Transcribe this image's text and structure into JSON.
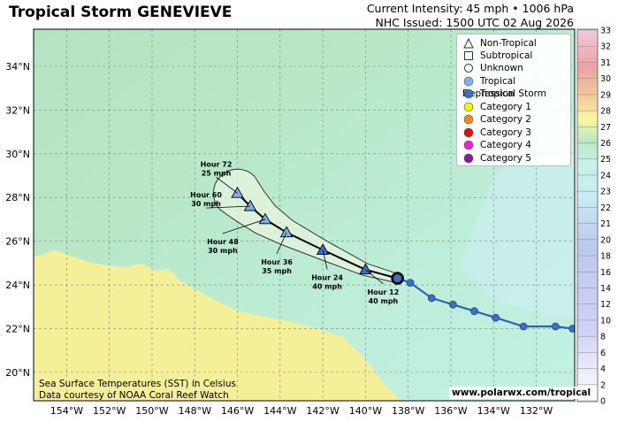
{
  "header": {
    "title": "Tropical Storm GENEVIEVE",
    "intensity": "Current Intensity: 45 mph • 1006 hPa",
    "issued": "NHC Issued: 1500 UTC 02 Aug 2026"
  },
  "axes": {
    "lat_labels": [
      "20°N",
      "22°N",
      "24°N",
      "26°N",
      "28°N",
      "30°N",
      "32°N",
      "34°N"
    ],
    "lon_labels": [
      "154°W",
      "152°W",
      "150°W",
      "148°W",
      "146°W",
      "144°W",
      "142°W",
      "140°W",
      "138°W",
      "136°W",
      "134°W",
      "132°W"
    ]
  },
  "colorbar": {
    "ticks": [
      "0",
      "2",
      "4",
      "6",
      "8",
      "10",
      "12",
      "14",
      "16",
      "18",
      "20",
      "21",
      "22",
      "23",
      "24",
      "25",
      "26",
      "27",
      "28",
      "29",
      "30",
      "31",
      "32",
      "33"
    ],
    "unit": "°C"
  },
  "legend": [
    {
      "label": "Non-Tropical",
      "symbol": "triangle-outline"
    },
    {
      "label": "Subtropical",
      "symbol": "square-outline"
    },
    {
      "label": "Unknown",
      "symbol": "circle-outline"
    },
    {
      "label": "Tropical Depression",
      "color": "#7fb2e8"
    },
    {
      "label": "Tropical Storm",
      "color": "#3a6fc4"
    },
    {
      "label": "Category 1",
      "color": "#f6f200"
    },
    {
      "label": "Category 2",
      "color": "#f08a1c"
    },
    {
      "label": "Category 3",
      "color": "#e01010"
    },
    {
      "label": "Category 4",
      "color": "#f020d0"
    },
    {
      "label": "Category 5",
      "color": "#8a1a9a"
    }
  ],
  "forecast_points": [
    {
      "hour": "Hour 12",
      "wind": "40 mph",
      "lat": 24.7,
      "lon": -140.0
    },
    {
      "hour": "Hour 24",
      "wind": "40 mph",
      "lat": 25.6,
      "lon": -142.0
    },
    {
      "hour": "Hour 36",
      "wind": "35 mph",
      "lat": 26.4,
      "lon": -143.7
    },
    {
      "hour": "Hour 48",
      "wind": "30 mph",
      "lat": 27.0,
      "lon": -144.7
    },
    {
      "hour": "Hour 60",
      "wind": "30 mph",
      "lat": 27.6,
      "lon": -145.4
    },
    {
      "hour": "Hour 72",
      "wind": "25 mph",
      "lat": 28.2,
      "lon": -146.0
    }
  ],
  "current_position": {
    "lat": 24.3,
    "lon": -138.5
  },
  "past_track": [
    {
      "lat": 24.3,
      "lon": -138.5
    },
    {
      "lat": 24.1,
      "lon": -137.9
    },
    {
      "lat": 23.4,
      "lon": -136.9
    },
    {
      "lat": 23.1,
      "lon": -135.9
    },
    {
      "lat": 22.8,
      "lon": -134.9
    },
    {
      "lat": 22.5,
      "lon": -133.9
    },
    {
      "lat": 22.1,
      "lon": -132.6
    },
    {
      "lat": 22.1,
      "lon": -131.1
    },
    {
      "lat": 22.0,
      "lon": -130.3
    }
  ],
  "credits": {
    "line1": "Sea Surface Temperatures (SST) in Celsius",
    "line2": "Data courtesy of NOAA Coral Reef Watch",
    "website": "www.polarwx.com/tropical"
  }
}
